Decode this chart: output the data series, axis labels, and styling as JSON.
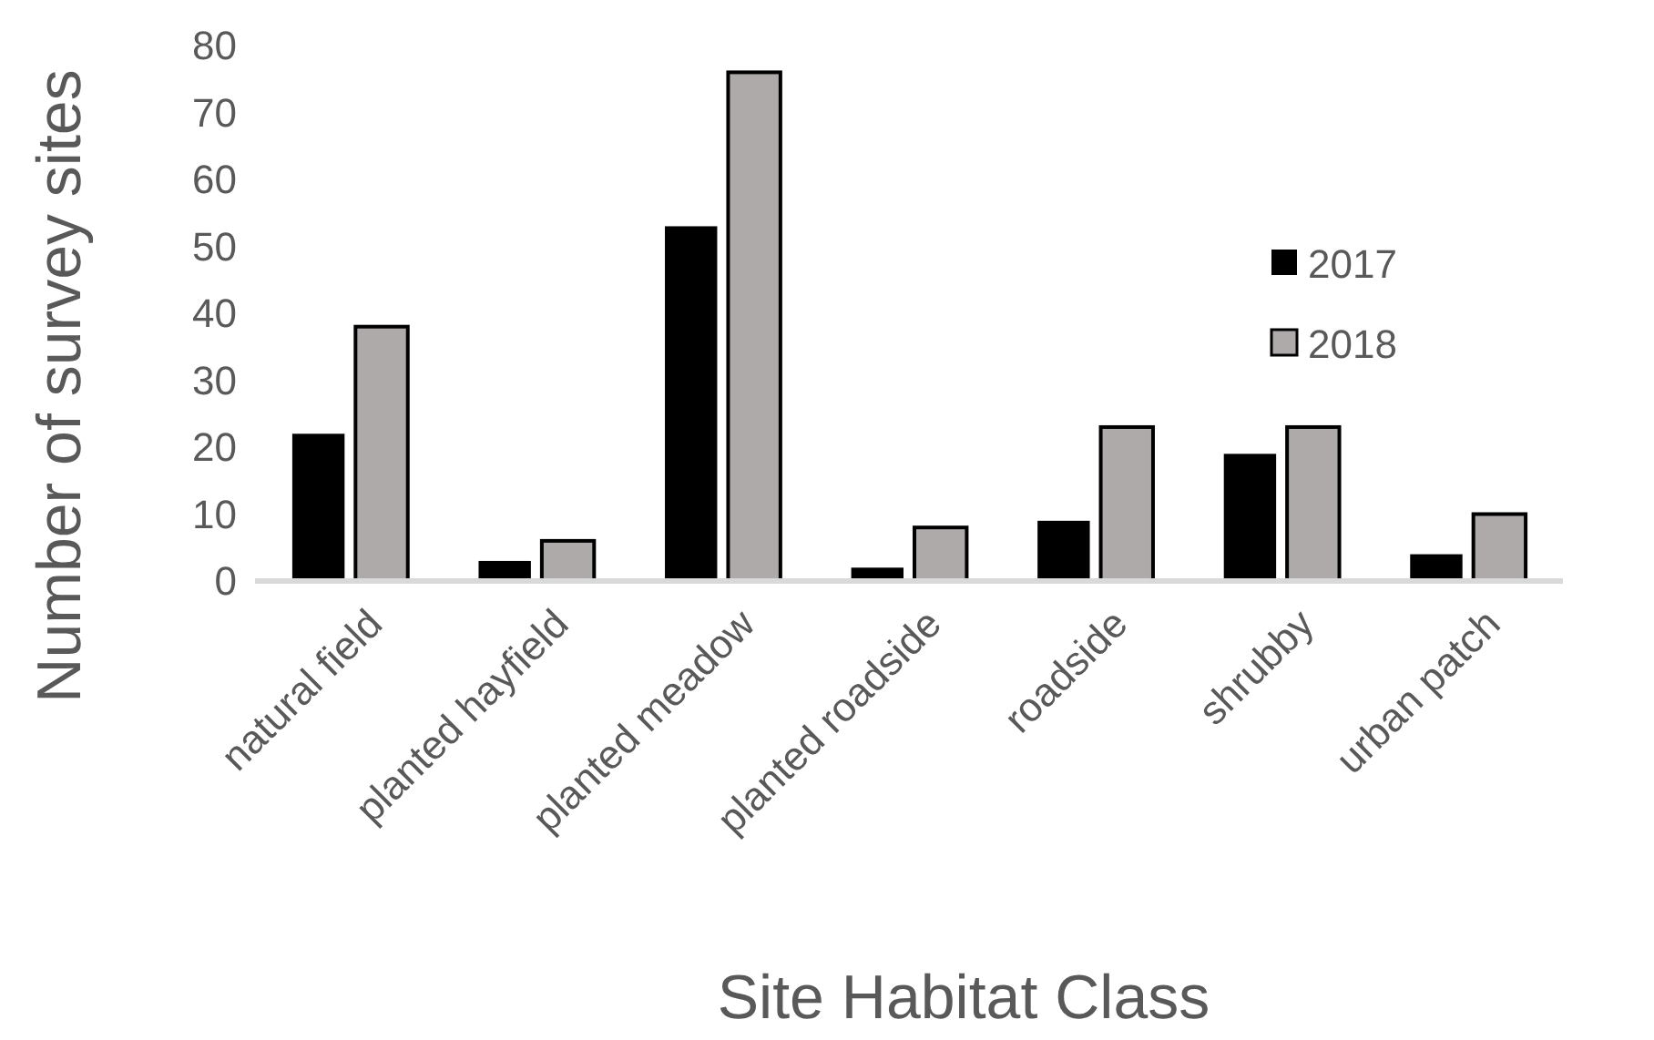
{
  "chart_data": {
    "type": "bar",
    "xlabel": "Site Habitat Class",
    "ylabel": "Number of survey sites",
    "categories": [
      "natural field",
      "planted hayfield",
      "planted meadow",
      "planted roadside",
      "roadside",
      "shrubby",
      "urban patch"
    ],
    "series": [
      {
        "name": "2017",
        "color": "#000000",
        "values": [
          22,
          3,
          53,
          2,
          9,
          19,
          4
        ]
      },
      {
        "name": "2018",
        "color": "#aeaaaa",
        "values": [
          38,
          6,
          76,
          8,
          23,
          23,
          10
        ]
      }
    ],
    "ylim": [
      0,
      80
    ],
    "yticks": [
      0,
      10,
      20,
      30,
      40,
      50,
      60,
      70,
      80
    ],
    "grid": false,
    "legend": "right"
  }
}
